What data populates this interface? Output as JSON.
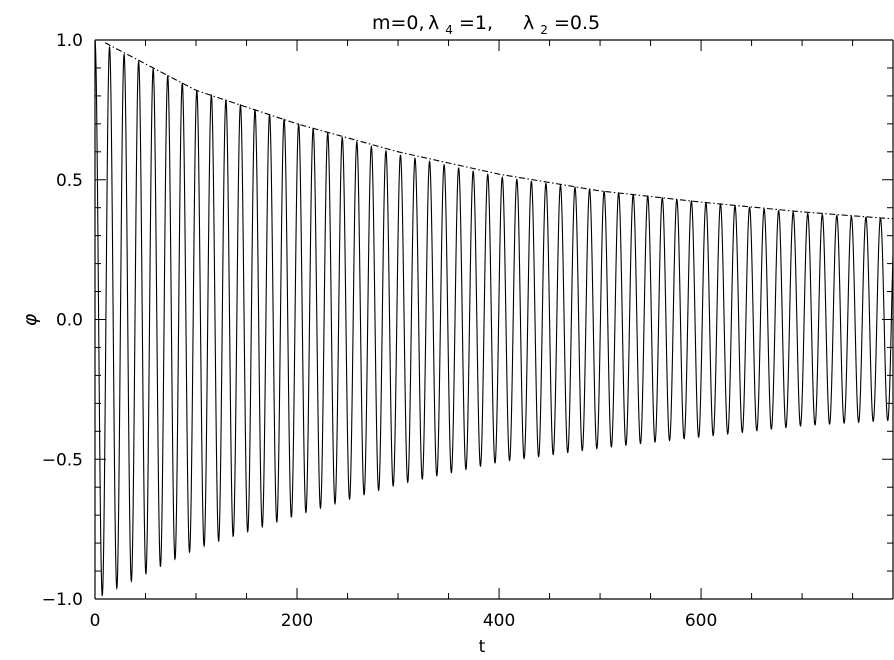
{
  "chart_data": {
    "type": "line",
    "title": "m=0,  λ4=1,  λ2=0.5",
    "title_parts": {
      "m": "m=0,",
      "l4_base": "λ",
      "l4_sub": "4",
      "l4_val": "=1,",
      "l2_base": "λ",
      "l2_sub": "2",
      "l2_val": "=0.5"
    },
    "xlabel": "t",
    "ylabel": "φ",
    "xlim": [
      0,
      790
    ],
    "ylim": [
      -1.0,
      1.0
    ],
    "x_ticks": [
      0,
      200,
      400,
      600
    ],
    "x_tick_labels": [
      "0",
      "200",
      "400",
      "600"
    ],
    "y_ticks": [
      -1.0,
      -0.5,
      0.0,
      0.5,
      1.0
    ],
    "y_tick_labels": [
      "−1.0",
      "−0.5",
      "0.0",
      "0.5",
      "1.0"
    ],
    "grid": false,
    "series": [
      {
        "style": "solid",
        "description_values": {
          "form": "damped oscillation",
          "t_start": 0,
          "t_end": 790,
          "period_approx": 14.4,
          "amplitude_points": [
            [
              0,
              1.0
            ],
            [
              100,
              0.82
            ],
            [
              200,
              0.7
            ],
            [
              300,
              0.59
            ],
            [
              400,
              0.51
            ],
            [
              500,
              0.46
            ],
            [
              600,
              0.42
            ],
            [
              700,
              0.38
            ],
            [
              790,
              0.36
            ]
          ]
        }
      },
      {
        "style": "dash-dot",
        "envelope_points": [
          [
            10,
            0.99
          ],
          [
            100,
            0.82
          ],
          [
            200,
            0.7
          ],
          [
            300,
            0.6
          ],
          [
            400,
            0.52
          ],
          [
            500,
            0.46
          ],
          [
            600,
            0.42
          ],
          [
            700,
            0.385
          ],
          [
            790,
            0.36
          ]
        ]
      }
    ]
  }
}
